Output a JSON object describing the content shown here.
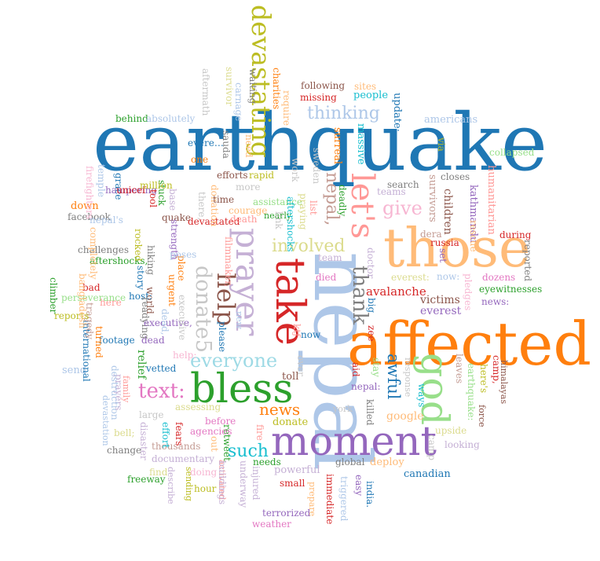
{
  "words": [
    {
      "text": "earthquake",
      "color": "#1f77b4",
      "rot": 0
    },
    {
      "text": "nepal",
      "color": "#aec7e8",
      "rot": 90
    },
    {
      "text": "those",
      "color": "#ffbb78",
      "rot": 0
    },
    {
      "text": "affected",
      "color": "#ff7f0e",
      "rot": 0
    },
    {
      "text": "moment",
      "color": "#9467bd",
      "rot": 0
    },
    {
      "text": "bless",
      "color": "#2ca02c",
      "rot": 0
    },
    {
      "text": "take",
      "color": "#d62728",
      "rot": 90
    },
    {
      "text": "prayer",
      "color": "#c5b0d5",
      "rot": 90
    },
    {
      "text": "god",
      "color": "#98df8a",
      "rot": 90
    },
    {
      "text": "let's",
      "color": "#ff9896",
      "rot": 90
    },
    {
      "text": "help",
      "color": "#8c564b",
      "rot": 90
    },
    {
      "text": "devastating",
      "color": "#bcbd22",
      "rot": 90
    },
    {
      "text": "donate5",
      "color": "#c7c7c7",
      "rot": 90
    },
    {
      "text": "thank",
      "color": "#7f7f7f",
      "rot": 90
    },
    {
      "text": "everyone",
      "color": "#9edae5",
      "rot": 0
    },
    {
      "text": "text:",
      "color": "#e377c2",
      "rot": 0
    },
    {
      "text": "nepal,",
      "color": "#c49c94",
      "rot": 90
    },
    {
      "text": "awful",
      "color": "#1f77b4",
      "rot": 90
    },
    {
      "text": "give",
      "color": "#f7b6d2",
      "rot": 0
    },
    {
      "text": "involved",
      "color": "#dbdb8d",
      "rot": 0
    },
    {
      "text": "thinking",
      "color": "#aec7e8",
      "rot": 0
    },
    {
      "text": "news",
      "color": "#ff7f0e",
      "rot": 0
    },
    {
      "text": "such",
      "color": "#17becf",
      "rot": 0
    },
    {
      "text": "avalanche",
      "color": "#d62728",
      "rot": 0
    },
    {
      "text": "google",
      "color": "#ffbb78",
      "rot": 0
    },
    {
      "text": "everest",
      "color": "#9467bd",
      "rot": 0
    },
    {
      "text": "victims",
      "color": "#8c564b",
      "rot": 0
    },
    {
      "text": "survivors",
      "color": "#c49c94",
      "rot": 90
    },
    {
      "text": "children",
      "color": "#8c564b",
      "rot": 90
    },
    {
      "text": "humanitarian",
      "color": "#ff9896",
      "rot": 90
    },
    {
      "text": "kathmandu",
      "color": "#9467bd",
      "rot": 90
    },
    {
      "text": "collapsed",
      "color": "#98df8a",
      "rot": 0
    },
    {
      "text": "americans",
      "color": "#aec7e8",
      "rot": 0
    },
    {
      "text": "closes",
      "color": "#7f7f7f",
      "rot": 0
    },
    {
      "text": "via",
      "color": "#bcbd22",
      "rot": 90
    },
    {
      "text": "update:",
      "color": "#1f77b4",
      "rot": 90
    },
    {
      "text": "people",
      "color": "#17becf",
      "rot": 0
    },
    {
      "text": "sites",
      "color": "#ffbb78",
      "rot": 0
    },
    {
      "text": "following",
      "color": "#8c564b",
      "rot": 0
    },
    {
      "text": "missing",
      "color": "#d62728",
      "rot": 0
    },
    {
      "text": "massive",
      "color": "#17becf",
      "rot": 90
    },
    {
      "text": "surreal",
      "color": "#ff7f0e",
      "rot": 90
    },
    {
      "text": "sweden",
      "color": "#c7c7c7",
      "rot": 90
    },
    {
      "text": "search",
      "color": "#7f7f7f",
      "rot": 0
    },
    {
      "text": "teams",
      "color": "#c5b0d5",
      "rot": 0
    },
    {
      "text": "deadly",
      "color": "#2ca02c",
      "rot": 90
    },
    {
      "text": "list",
      "color": "#ff9896",
      "rot": 90
    },
    {
      "text": "rescue",
      "color": "#ffbb78",
      "rot": 90
    },
    {
      "text": "dera",
      "color": "#c49c94",
      "rot": 0
    },
    {
      "text": "russia",
      "color": "#d62728",
      "rot": 0
    },
    {
      "text": "set",
      "color": "#9467bd",
      "rot": 90
    },
    {
      "text": "during",
      "color": "#d62728",
      "rot": 0
    },
    {
      "text": "reported",
      "color": "#7f7f7f",
      "rot": 90
    },
    {
      "text": "dozens",
      "color": "#e377c2",
      "rot": 0
    },
    {
      "text": "eyewitnesses",
      "color": "#2ca02c",
      "rot": 0
    },
    {
      "text": "news:",
      "color": "#9467bd",
      "rot": 0
    },
    {
      "text": "pledges",
      "color": "#f7b6d2",
      "rot": 90
    },
    {
      "text": "now:",
      "color": "#aec7e8",
      "rot": 0
    },
    {
      "text": "everest:",
      "color": "#dbdb8d",
      "rot": 0
    },
    {
      "text": "himalayas",
      "color": "#8c564b",
      "rot": 90
    },
    {
      "text": "camp,",
      "color": "#d62728",
      "rot": 90
    },
    {
      "text": "here's",
      "color": "#bcbd22",
      "rot": 90
    },
    {
      "text": "earthquake:",
      "color": "#98df8a",
      "rot": 90
    },
    {
      "text": "leaves",
      "color": "#c49c94",
      "rot": 90
    },
    {
      "text": "force",
      "color": "#8c564b",
      "rot": 90
    },
    {
      "text": "ways",
      "color": "#17becf",
      "rot": 90
    },
    {
      "text": "response",
      "color": "#c7c7c7",
      "rot": 90
    },
    {
      "text": "nepal:",
      "color": "#9467bd",
      "rot": 0
    },
    {
      "text": "killed",
      "color": "#7f7f7f",
      "rot": 90
    },
    {
      "text": "york",
      "color": "#c7c7c7",
      "rot": 0
    },
    {
      "text": "upside",
      "color": "#dbdb8d",
      "rot": 0
    },
    {
      "text": "camp",
      "color": "#c7c7c7",
      "rot": 90
    },
    {
      "text": "looking",
      "color": "#c5b0d5",
      "rot": 0
    },
    {
      "text": "canadian",
      "color": "#1f77b4",
      "rot": 0
    },
    {
      "text": "deploy",
      "color": "#ffbb78",
      "rot": 0
    },
    {
      "text": "global",
      "color": "#7f7f7f",
      "rot": 0
    },
    {
      "text": "easy",
      "color": "#9467bd",
      "rot": 90
    },
    {
      "text": "india.",
      "color": "#1f77b4",
      "rot": 90
    },
    {
      "text": "triggered",
      "color": "#aec7e8",
      "rot": 90
    },
    {
      "text": "immediate",
      "color": "#d62728",
      "rot": 90
    },
    {
      "text": "prepare",
      "color": "#ffbb78",
      "rot": 90
    },
    {
      "text": "small",
      "color": "#d62728",
      "rot": 0
    },
    {
      "text": "powerful",
      "color": "#c5b0d5",
      "rot": 0
    },
    {
      "text": "terrorized",
      "color": "#9467bd",
      "rot": 0
    },
    {
      "text": "weather",
      "color": "#e377c2",
      "rot": 0
    },
    {
      "text": "needs",
      "color": "#2ca02c",
      "rot": 0
    },
    {
      "text": "injured",
      "color": "#c5b0d5",
      "rot": 90
    },
    {
      "text": "underway",
      "color": "#c5b0d5",
      "rot": 90
    },
    {
      "text": "retweet",
      "color": "#2ca02c",
      "rot": 90
    },
    {
      "text": "fire",
      "color": "#ff9896",
      "rot": 90
    },
    {
      "text": "donate",
      "color": "#bcbd22",
      "rot": 0
    },
    {
      "text": "toll",
      "color": "#8c564b",
      "rot": 0
    },
    {
      "text": "over",
      "color": "#c7c7c7",
      "rot": 90
    },
    {
      "text": "ktƒ",
      "color": "#ff9896",
      "rot": 90
    },
    {
      "text": "now",
      "color": "#1f77b4",
      "rot": 0
    },
    {
      "text": "zee",
      "color": "#d62728",
      "rot": 90
    },
    {
      "text": "big",
      "color": "#1f77b4",
      "rot": 90
    },
    {
      "text": "stay",
      "color": "#98df8a",
      "rot": 90
    },
    {
      "text": "aid",
      "color": "#d62728",
      "rot": 90
    },
    {
      "text": "doctor",
      "color": "#c5b0d5",
      "rot": 90
    },
    {
      "text": "died",
      "color": "#e377c2",
      "rot": 0
    },
    {
      "text": "team",
      "color": "#c5b0d5",
      "rot": 0
    },
    {
      "text": "before",
      "color": "#e377c2",
      "rot": 0
    },
    {
      "text": "agencies",
      "color": "#e377c2",
      "rot": 0
    },
    {
      "text": "out",
      "color": "#ffbb78",
      "rot": 90
    },
    {
      "text": "activated",
      "color": "#ff9896",
      "rot": 90
    },
    {
      "text": "buildings",
      "color": "#c5b0d5",
      "rot": 90
    },
    {
      "text": "hour",
      "color": "#bcbd22",
      "rot": 0
    },
    {
      "text": "sending",
      "color": "#bcbd22",
      "rot": 90
    },
    {
      "text": "doing",
      "color": "#f7b6d2",
      "rot": 0
    },
    {
      "text": "describe",
      "color": "#c5b0d5",
      "rot": 90
    },
    {
      "text": "find",
      "color": "#dbdb8d",
      "rot": 0
    },
    {
      "text": "freeway",
      "color": "#2ca02c",
      "rot": 0
    },
    {
      "text": "documentary",
      "color": "#c5b0d5",
      "rot": 0
    },
    {
      "text": "thousands",
      "color": "#c49c94",
      "rot": 0
    },
    {
      "text": "fears",
      "color": "#d62728",
      "rot": 90
    },
    {
      "text": "effort",
      "color": "#17becf",
      "rot": 90
    },
    {
      "text": "disaster",
      "color": "#c5b0d5",
      "rot": 90
    },
    {
      "text": "change",
      "color": "#7f7f7f",
      "rot": 0
    },
    {
      "text": "bell;",
      "color": "#dbdb8d",
      "rot": 0
    },
    {
      "text": "large",
      "color": "#c7c7c7",
      "rot": 0
    },
    {
      "text": "assessing",
      "color": "#dbdb8d",
      "rot": 0
    },
    {
      "text": "prayers",
      "color": "#c5b0d5",
      "rot": 90
    },
    {
      "text": "family",
      "color": "#ff9896",
      "rot": 90
    },
    {
      "text": "devastation",
      "color": "#aec7e8",
      "rot": 90
    },
    {
      "text": "destruction",
      "color": "#aec7e8",
      "rot": 90
    },
    {
      "text": "vetted",
      "color": "#1f77b4",
      "rot": 0
    },
    {
      "text": "help:",
      "color": "#f7b6d2",
      "rot": 0
    },
    {
      "text": "relief",
      "color": "#2ca02c",
      "rot": 90
    },
    {
      "text": "dead",
      "color": "#9467bd",
      "rot": 0
    },
    {
      "text": "send",
      "color": "#aec7e8",
      "rot": 0
    },
    {
      "text": "footage",
      "color": "#1f77b4",
      "rot": 0
    },
    {
      "text": "turned",
      "color": "#ff7f0e",
      "rot": 90
    },
    {
      "text": "international",
      "color": "#1f77b4",
      "rot": 90
    },
    {
      "text": "tragedy",
      "color": "#c49c94",
      "rot": 90
    },
    {
      "text": "here",
      "color": "#ff9896",
      "rot": 0
    },
    {
      "text": "bad",
      "color": "#d62728",
      "rot": 0
    },
    {
      "text": "reports",
      "color": "#bcbd22",
      "rot": 0
    },
    {
      "text": "perseverance",
      "color": "#98df8a",
      "rot": 0
    },
    {
      "text": "climber",
      "color": "#2ca02c",
      "rot": 90
    },
    {
      "text": "bangladesh",
      "color": "#ffbb78",
      "rot": 90
    },
    {
      "text": "aftershocks,",
      "color": "#2ca02c",
      "rot": 0
    },
    {
      "text": "challenges",
      "color": "#7f7f7f",
      "rot": 0
    },
    {
      "text": "facebook",
      "color": "#7f7f7f",
      "rot": 0
    },
    {
      "text": "completely",
      "color": "#ffbb78",
      "rot": 90
    },
    {
      "text": "nepal's",
      "color": "#aec7e8",
      "rot": 0
    },
    {
      "text": "down",
      "color": "#ff7f0e",
      "rot": 0
    },
    {
      "text": "hampering",
      "color": "#9467bd",
      "rot": 0
    },
    {
      "text": "firefighters",
      "color": "#f7b6d2",
      "rot": 90
    },
    {
      "text": "temple",
      "color": "#aec7e8",
      "rot": 90
    },
    {
      "text": "grace",
      "color": "#1f77b4",
      "rot": 90
    },
    {
      "text": "unicef",
      "color": "#d62728",
      "rot": 0
    },
    {
      "text": "behind",
      "color": "#2ca02c",
      "rot": 0
    },
    {
      "text": "absolutely",
      "color": "#aec7e8",
      "rot": 0
    },
    {
      "text": "evere…",
      "color": "#1f77b4",
      "rot": 0
    },
    {
      "text": "one",
      "color": "#ff7f0e",
      "rot": 0
    },
    {
      "text": "stuck",
      "color": "#2ca02c",
      "rot": 90
    },
    {
      "text": "million",
      "color": "#bcbd22",
      "rot": 0
    },
    {
      "text": "tool",
      "color": "#d62728",
      "rot": 90
    },
    {
      "text": "rocked",
      "color": "#bcbd22",
      "rot": 90
    },
    {
      "text": "hiking",
      "color": "#7f7f7f",
      "rot": 90
    },
    {
      "text": "story",
      "color": "#1f77b4",
      "rot": 90
    },
    {
      "text": "quake",
      "color": "#8c564b",
      "rot": 0
    },
    {
      "text": "strength",
      "color": "#9467bd",
      "rot": 90
    },
    {
      "text": "world",
      "color": "#8c564b",
      "rot": 90
    },
    {
      "text": "host:",
      "color": "#1f77b4",
      "rot": 0
    },
    {
      "text": "readying",
      "color": "#7f7f7f",
      "rot": 90
    },
    {
      "text": "executive,",
      "color": "#9467bd",
      "rot": 0
    },
    {
      "text": "dead,",
      "color": "#aec7e8",
      "rot": 90
    },
    {
      "text": "executive",
      "color": "#c7c7c7",
      "rot": 90
    },
    {
      "text": "place",
      "color": "#ff7f0e",
      "rot": 90
    },
    {
      "text": "urgent",
      "color": "#ff7f0e",
      "rot": 90
    },
    {
      "text": "base",
      "color": "#c5b0d5",
      "rot": 90
    },
    {
      "text": "poses",
      "color": "#aec7e8",
      "rot": 0
    },
    {
      "text": "devastated",
      "color": "#d62728",
      "rot": 0
    },
    {
      "text": "there,",
      "color": "#c7c7c7",
      "rot": 90
    },
    {
      "text": "filmmaker,",
      "color": "#ff9896",
      "rot": 90
    },
    {
      "text": "please",
      "color": "#1f77b4",
      "rot": 90
    },
    {
      "text": "new",
      "color": "#aec7e8",
      "rot": 90
    },
    {
      "text": "donation",
      "color": "#ffbb78",
      "rot": 90
    },
    {
      "text": "time",
      "color": "#8c564b",
      "rot": 0
    },
    {
      "text": "more",
      "color": "#c7c7c7",
      "rot": 0
    },
    {
      "text": "efforts",
      "color": "#8c564b",
      "rot": 0
    },
    {
      "text": "rapid",
      "color": "#bcbd22",
      "rot": 0
    },
    {
      "text": "courage",
      "color": "#ffbb78",
      "rot": 0
    },
    {
      "text": "death",
      "color": "#ff9896",
      "rot": 0
    },
    {
      "text": "assistance",
      "color": "#98df8a",
      "rot": 0
    },
    {
      "text": "nearly",
      "color": "#2ca02c",
      "rot": 0
    },
    {
      "text": "link",
      "color": "#c7c7c7",
      "rot": 90
    },
    {
      "text": "work",
      "color": "#c7c7c7",
      "rot": 90
    },
    {
      "text": "aftershocks",
      "color": "#17becf",
      "rot": 90
    },
    {
      "text": "praying",
      "color": "#dbdb8d",
      "rot": 90
    },
    {
      "text": "need",
      "color": "#ffbb78",
      "rot": 90
    },
    {
      "text": "sauda",
      "color": "#7f7f7f",
      "rot": 90
    },
    {
      "text": "aftermath",
      "color": "#c7c7c7",
      "rot": 90
    },
    {
      "text": "survivor",
      "color": "#dbdb8d",
      "rot": 90
    },
    {
      "text": "carnage",
      "color": "#aec7e8",
      "rot": 90
    },
    {
      "text": "waiting",
      "color": "#7f7f7f",
      "rot": 90
    },
    {
      "text": "charities",
      "color": "#ff7f0e",
      "rot": 90
    },
    {
      "text": "require",
      "color": "#ffbb78",
      "rot": 90
    }
  ]
}
